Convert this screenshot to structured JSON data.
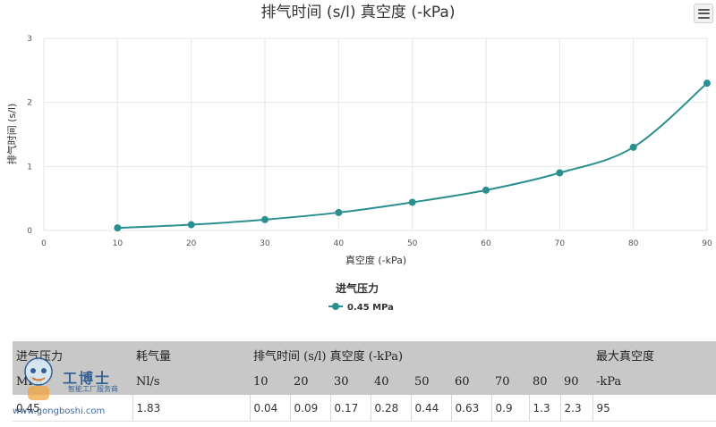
{
  "chart_data": {
    "type": "line",
    "title": "排气时间 (s/l) 真空度 (-kPa)",
    "xlabel": "真空度 (-kPa)",
    "ylabel": "排气时间 (s/l)",
    "xlim": [
      0,
      90
    ],
    "ylim": [
      0,
      3
    ],
    "x_ticks": [
      "0",
      "10",
      "20",
      "30",
      "40",
      "50",
      "60",
      "70",
      "80",
      "90"
    ],
    "y_ticks": [
      "0",
      "1",
      "2",
      "3"
    ],
    "grid": true,
    "legend_title": "进气压力",
    "legend_position": "bottom-center",
    "series": [
      {
        "name": "0.45 MPa",
        "color": "#2b8f8f",
        "x": [
          10,
          20,
          30,
          40,
          50,
          60,
          70,
          80,
          90
        ],
        "values": [
          0.04,
          0.09,
          0.17,
          0.28,
          0.44,
          0.63,
          0.9,
          1.3,
          2.3
        ]
      }
    ]
  },
  "table": {
    "header1": {
      "intake_pressure": "进气压力",
      "air_consumption": "耗气量",
      "exhaust_time": "排气时间 (s/l) 真空度 (-kPa)",
      "max_vacuum": "最大真空度"
    },
    "header2": {
      "intake_unit": "MPa",
      "consumption_unit": "Nl/s",
      "vacuum_levels": [
        "10",
        "20",
        "30",
        "40",
        "50",
        "60",
        "70",
        "80",
        "90"
      ],
      "max_unit": "-kPa"
    },
    "row": {
      "pressure": "0.45",
      "consumption": "1.83",
      "times": [
        "0.04",
        "0.09",
        "0.17",
        "0.28",
        "0.44",
        "0.63",
        "0.9",
        "1.3",
        "2.3"
      ],
      "max_vacuum": "95"
    }
  },
  "watermark": {
    "name": "工博士",
    "subtitle": "智能工厂服务商",
    "url": "www.gongboshi.com"
  },
  "icons": {
    "menu": "hamburger-menu-icon",
    "watermark_logo": "robot-mascot-icon"
  }
}
